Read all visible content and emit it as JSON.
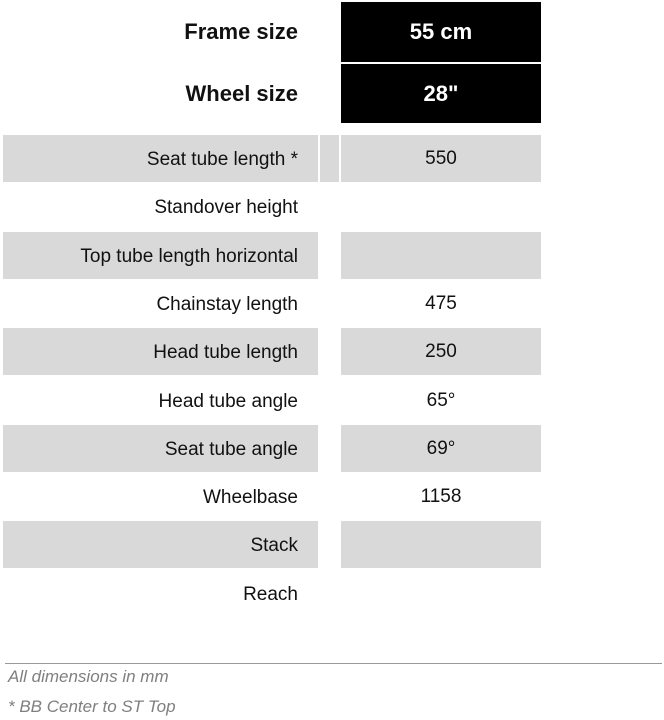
{
  "header": {
    "frame_size_label": "Frame size",
    "frame_size_value": "55 cm",
    "wheel_size_label": "Wheel size",
    "wheel_size_value": "28\""
  },
  "rows": [
    {
      "label": "Seat tube length *",
      "value": "550"
    },
    {
      "label": "Standover height",
      "value": ""
    },
    {
      "label": "Top tube length horizontal",
      "value": ""
    },
    {
      "label": "Chainstay length",
      "value": "475"
    },
    {
      "label": "Head tube length",
      "value": "250"
    },
    {
      "label": "Head tube angle",
      "value": "65°"
    },
    {
      "label": "Seat tube angle",
      "value": "69°"
    },
    {
      "label": "Wheelbase",
      "value": "1158"
    },
    {
      "label": "Stack",
      "value": ""
    },
    {
      "label": "Reach",
      "value": ""
    }
  ],
  "footer": {
    "units_note": "All dimensions in mm",
    "footnote": "* BB Center to ST Top"
  },
  "colors": {
    "header_bg": "#000000",
    "stripe": "#d9d9d9",
    "note": "#7f7f7f"
  }
}
